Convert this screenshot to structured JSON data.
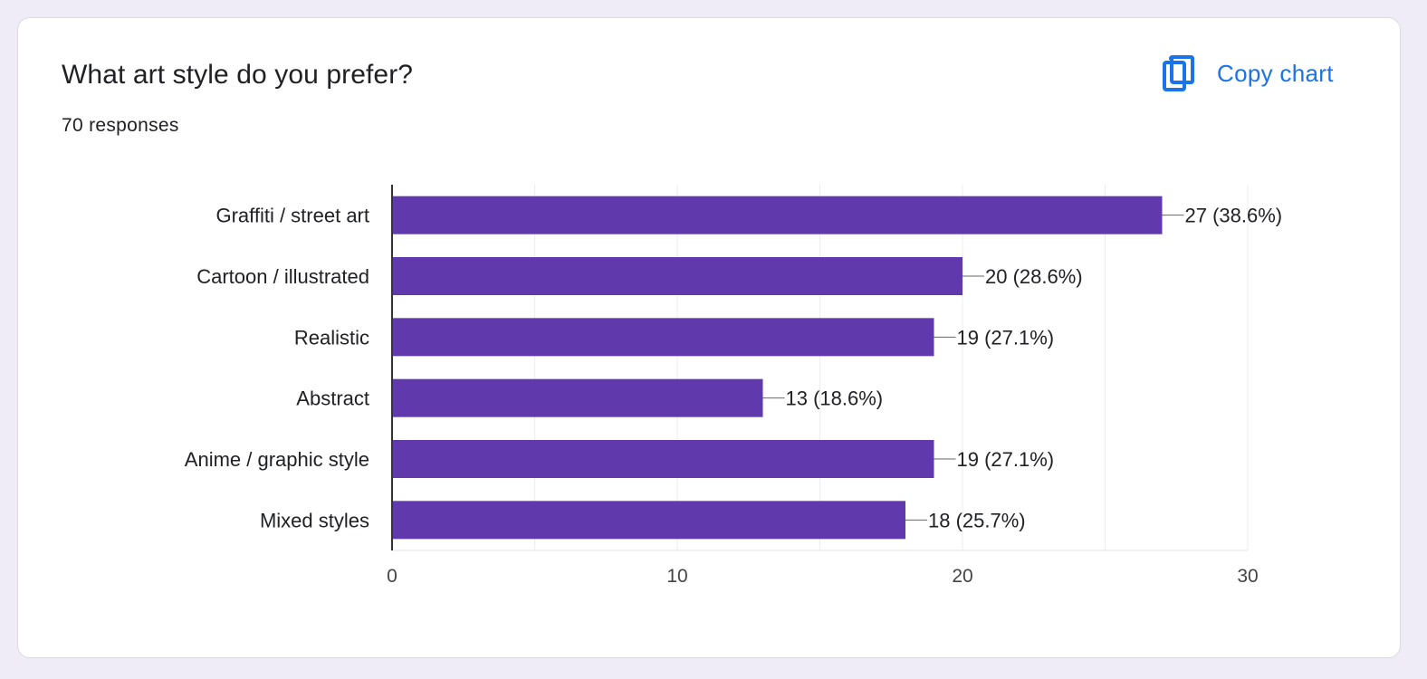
{
  "card": {
    "title": "What art style do you prefer?",
    "subtitle": "70 responses",
    "copy_label": "Copy chart",
    "copy_icon": "copy-icon"
  },
  "colors": {
    "bar": "#6039ad",
    "accent": "#1a73e8",
    "text": "#202124",
    "grid": "#ececec"
  },
  "chart_data": {
    "type": "bar",
    "orientation": "horizontal",
    "title": "What art style do you prefer?",
    "subtitle": "70 responses",
    "categories": [
      "Graffiti / street art",
      "Cartoon / illustrated",
      "Realistic",
      "Abstract",
      "Anime / graphic style",
      "Mixed styles"
    ],
    "values": [
      27,
      20,
      19,
      13,
      19,
      18
    ],
    "data_labels": [
      "27 (38.6%)",
      "20 (28.6%)",
      "19 (27.1%)",
      "13 (18.6%)",
      "19 (27.1%)",
      "18 (25.7%)"
    ],
    "xlim": [
      0,
      30
    ],
    "xticks": [
      0,
      10,
      20,
      30
    ],
    "xlabel": "",
    "ylabel": "",
    "grid": true,
    "legend": "none"
  }
}
